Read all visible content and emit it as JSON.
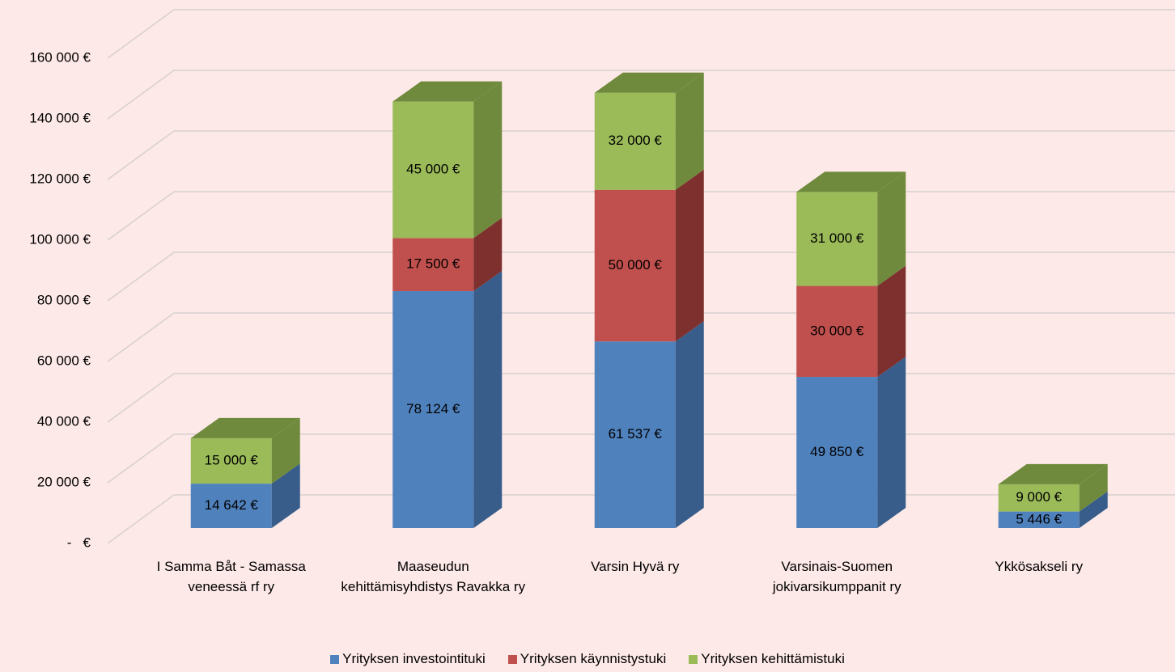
{
  "chart_data": {
    "type": "bar3d_stacked",
    "categories": [
      "I Samma Båt - Samassa veneessä rf ry",
      "Maaseudun kehittämisyhdistys Ravakka ry",
      "Varsin Hyvä ry",
      "Varsinais-Suomen jokivarsikumppanit ry",
      "Ykkösakseli ry"
    ],
    "series": [
      {
        "name": "Yrityksen investointituki",
        "color": "#4f81bd",
        "side": "#385d8a",
        "values": [
          14642,
          78124,
          61537,
          49850,
          5446
        ],
        "value_labels": [
          "14 642 €",
          "78 124 €",
          "61 537 €",
          "49 850 €",
          "5 446 €"
        ]
      },
      {
        "name": "Yrityksen käynnistystuki",
        "color": "#c0504d",
        "side": "#7e302e",
        "values": [
          null,
          17500,
          50000,
          30000,
          null
        ],
        "value_labels": [
          null,
          "17 500 €",
          "50 000 €",
          "30 000 €",
          null
        ]
      },
      {
        "name": "Yrityksen kehittämistuki",
        "color": "#9bbb59",
        "side": "#6f8a3d",
        "values": [
          15000,
          45000,
          32000,
          31000,
          9000
        ],
        "value_labels": [
          "15 000 €",
          "45 000 €",
          "32 000 €",
          "31 000 €",
          "9 000 €"
        ]
      }
    ],
    "ylim": [
      0,
      160000
    ],
    "yticks": [
      {
        "value": 0,
        "label": "-   €"
      },
      {
        "value": 20000,
        "label": "20 000 €"
      },
      {
        "value": 40000,
        "label": "40 000 €"
      },
      {
        "value": 60000,
        "label": "60 000 €"
      },
      {
        "value": 80000,
        "label": "80 000 €"
      },
      {
        "value": 100000,
        "label": "100 000 €"
      },
      {
        "value": 120000,
        "label": "120 000 €"
      },
      {
        "value": 140000,
        "label": "140 000 €"
      },
      {
        "value": 160000,
        "label": "160 000 €"
      }
    ],
    "grid": true,
    "legend": "bottom"
  }
}
